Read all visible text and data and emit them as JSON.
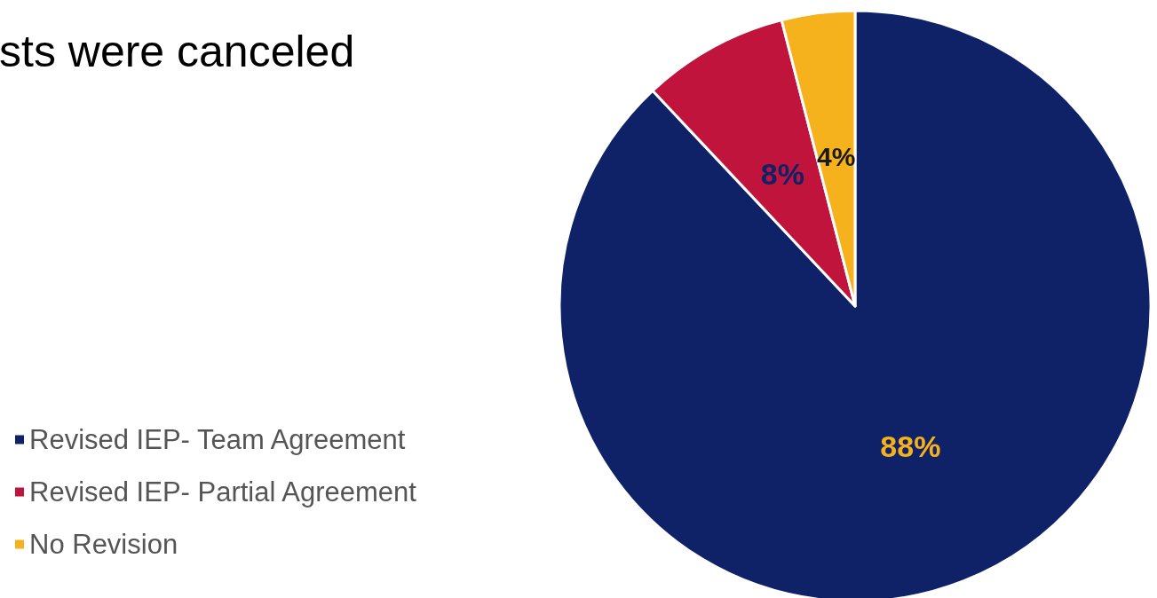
{
  "chart_data": {
    "type": "pie",
    "title": "sts were canceled",
    "categories": [
      "Revised IEP- Team Agreement",
      "Revised IEP- Partial Agreement",
      "No Revision"
    ],
    "values": [
      88,
      8,
      4
    ],
    "colors": [
      "#0f2167",
      "#c0143c",
      "#f5b21c"
    ],
    "value_labels": [
      "88%",
      "8%",
      "4%"
    ],
    "legend": "left"
  }
}
